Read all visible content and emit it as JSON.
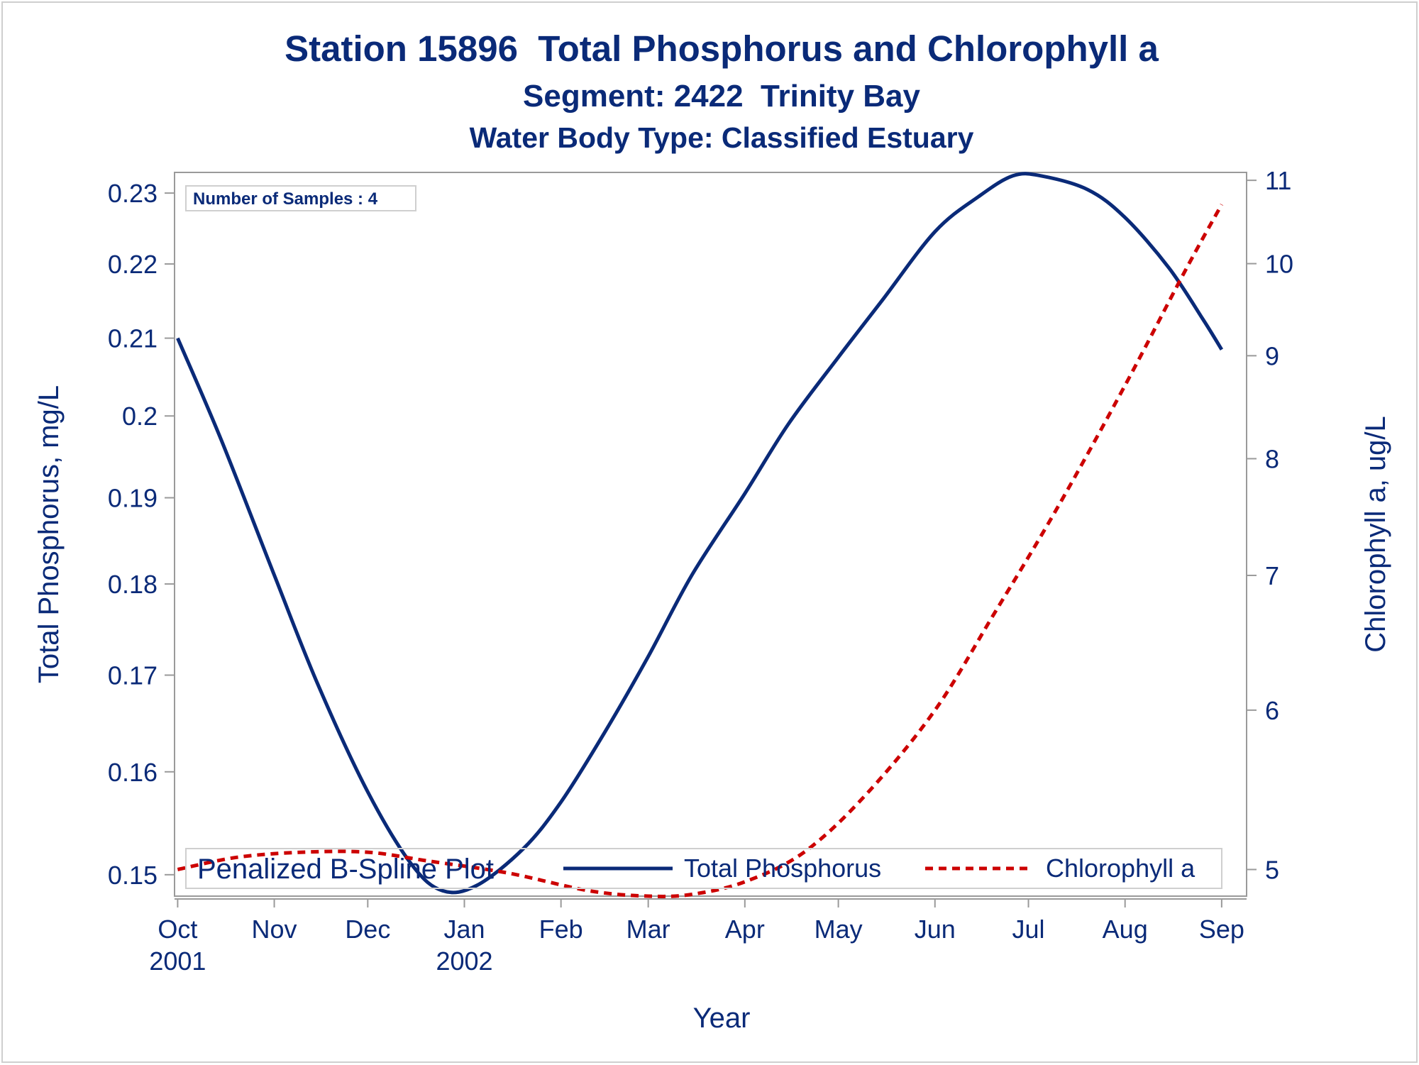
{
  "chart_data": {
    "type": "line",
    "title": "Station 15896  Total Phosphorus and Chlorophyll a",
    "subtitles": [
      "Segment: 2422  Trinity Bay",
      "Water Body Type: Classified Estuary"
    ],
    "xlabel": "Year",
    "ylabel_left": "Total Phosphorus, mg/L",
    "ylabel_right": "Chlorophyll a, ug/L",
    "y_left_scale": "log",
    "y_right_scale": "log",
    "ylim_left": [
      0.148,
      0.233
    ],
    "ylim_right": [
      4.85,
      11.1
    ],
    "xlim": [
      "2001-09-30",
      "2002-09-09"
    ],
    "x_ticks": [
      {
        "date": "2001-10-01",
        "label": "Oct",
        "label2": "2001"
      },
      {
        "date": "2001-11-01",
        "label": "Nov",
        "label2": ""
      },
      {
        "date": "2001-12-01",
        "label": "Dec",
        "label2": ""
      },
      {
        "date": "2002-01-01",
        "label": "Jan",
        "label2": "2002"
      },
      {
        "date": "2002-02-01",
        "label": "Feb",
        "label2": ""
      },
      {
        "date": "2002-03-01",
        "label": "Mar",
        "label2": ""
      },
      {
        "date": "2002-04-01",
        "label": "Apr",
        "label2": ""
      },
      {
        "date": "2002-05-01",
        "label": "May",
        "label2": ""
      },
      {
        "date": "2002-06-01",
        "label": "Jun",
        "label2": ""
      },
      {
        "date": "2002-07-01",
        "label": "Jul",
        "label2": ""
      },
      {
        "date": "2002-08-01",
        "label": "Aug",
        "label2": ""
      },
      {
        "date": "2002-09-01",
        "label": "Sep",
        "label2": ""
      }
    ],
    "y_left_ticks": [
      0.15,
      0.16,
      0.17,
      0.18,
      0.19,
      0.2,
      0.21,
      0.22,
      0.23
    ],
    "y_left_tick_labels": [
      "0.15",
      "0.16",
      "0.17",
      "0.18",
      "0.19",
      "0.2",
      "0.21",
      "0.22",
      "0.23"
    ],
    "y_right_ticks": [
      5,
      6,
      7,
      8,
      9,
      10,
      11
    ],
    "y_right_tick_labels": [
      "5",
      "6",
      "7",
      "8",
      "9",
      "10",
      "11"
    ],
    "legend_title": "Penalized B-Spline Plot",
    "legend_placement": "bottom-inside",
    "inset_text": "Number of Samples : 4",
    "grid": false,
    "series": [
      {
        "name": "Total Phosphorus",
        "axis": "left",
        "style": "solid",
        "color": "#0a2a78",
        "points": [
          {
            "x": "2001-10-01",
            "y": 0.21
          },
          {
            "x": "2001-10-15",
            "y": 0.197
          },
          {
            "x": "2001-11-01",
            "y": 0.181
          },
          {
            "x": "2001-11-15",
            "y": 0.169
          },
          {
            "x": "2001-12-01",
            "y": 0.158
          },
          {
            "x": "2001-12-15",
            "y": 0.151
          },
          {
            "x": "2001-12-25",
            "y": 0.1485
          },
          {
            "x": "2002-01-05",
            "y": 0.149
          },
          {
            "x": "2002-01-20",
            "y": 0.1525
          },
          {
            "x": "2002-02-01",
            "y": 0.157
          },
          {
            "x": "2002-02-15",
            "y": 0.164
          },
          {
            "x": "2002-03-01",
            "y": 0.172
          },
          {
            "x": "2002-03-15",
            "y": 0.181
          },
          {
            "x": "2002-04-01",
            "y": 0.1905
          },
          {
            "x": "2002-04-15",
            "y": 0.199
          },
          {
            "x": "2002-05-01",
            "y": 0.2075
          },
          {
            "x": "2002-05-15",
            "y": 0.215
          },
          {
            "x": "2002-06-01",
            "y": 0.2245
          },
          {
            "x": "2002-06-15",
            "y": 0.2295
          },
          {
            "x": "2002-06-26",
            "y": 0.2325
          },
          {
            "x": "2002-07-05",
            "y": 0.2325
          },
          {
            "x": "2002-07-20",
            "y": 0.2305
          },
          {
            "x": "2002-08-01",
            "y": 0.2265
          },
          {
            "x": "2002-08-15",
            "y": 0.2195
          },
          {
            "x": "2002-08-26",
            "y": 0.2125
          },
          {
            "x": "2002-09-01",
            "y": 0.2085
          }
        ]
      },
      {
        "name": "Chlorophyll a",
        "axis": "right",
        "style": "dashed",
        "color": "#cc0000",
        "points": [
          {
            "x": "2001-10-01",
            "y": 5.0
          },
          {
            "x": "2001-10-20",
            "y": 5.07
          },
          {
            "x": "2001-11-10",
            "y": 5.1
          },
          {
            "x": "2001-12-01",
            "y": 5.1
          },
          {
            "x": "2001-12-20",
            "y": 5.05
          },
          {
            "x": "2002-01-15",
            "y": 4.98
          },
          {
            "x": "2002-02-10",
            "y": 4.88
          },
          {
            "x": "2002-03-01",
            "y": 4.85
          },
          {
            "x": "2002-03-15",
            "y": 4.86
          },
          {
            "x": "2002-04-01",
            "y": 4.93
          },
          {
            "x": "2002-04-20",
            "y": 5.1
          },
          {
            "x": "2002-05-10",
            "y": 5.45
          },
          {
            "x": "2002-06-01",
            "y": 6.0
          },
          {
            "x": "2002-06-20",
            "y": 6.7
          },
          {
            "x": "2002-07-10",
            "y": 7.55
          },
          {
            "x": "2002-08-01",
            "y": 8.7
          },
          {
            "x": "2002-08-20",
            "y": 9.9
          },
          {
            "x": "2002-09-01",
            "y": 10.7
          }
        ]
      }
    ]
  }
}
